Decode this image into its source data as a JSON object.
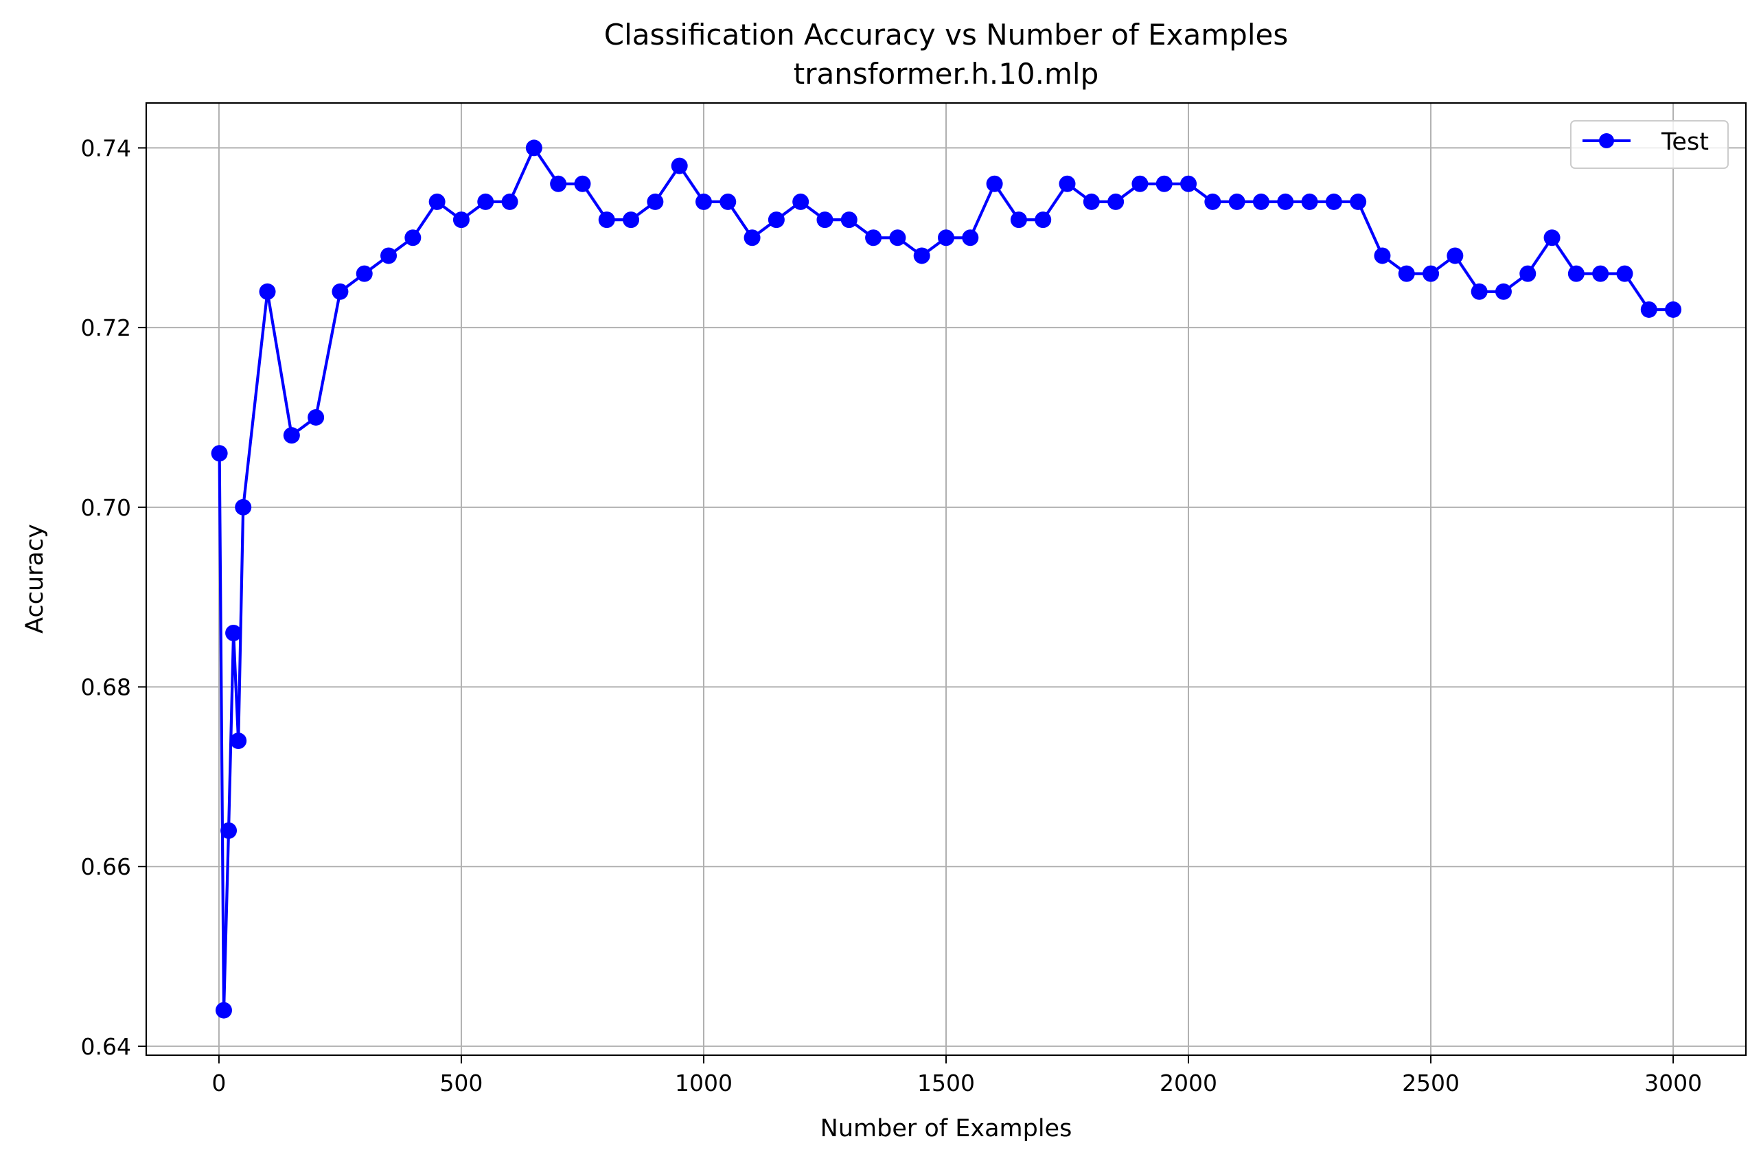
{
  "chart_data": {
    "type": "line",
    "title": "Classification Accuracy vs Number of Examples",
    "subtitle": "transformer.h.10.mlp",
    "xlabel": "Number of Examples",
    "ylabel": "Accuracy",
    "xlim": [
      -150,
      3150
    ],
    "ylim": [
      0.639,
      0.745
    ],
    "xticks": [
      0,
      500,
      1000,
      1500,
      2000,
      2500,
      3000
    ],
    "xtick_labels": [
      "0",
      "500",
      "1000",
      "1500",
      "2000",
      "2500",
      "3000"
    ],
    "yticks": [
      0.64,
      0.66,
      0.68,
      0.7,
      0.72,
      0.74
    ],
    "ytick_labels": [
      "0.64",
      "0.66",
      "0.68",
      "0.70",
      "0.72",
      "0.74"
    ],
    "grid": true,
    "legend_position": "top-right",
    "series": [
      {
        "name": "Test",
        "color": "#0000ff",
        "marker": "circle",
        "x": [
          1,
          10,
          20,
          30,
          40,
          50,
          100,
          150,
          200,
          250,
          300,
          350,
          400,
          450,
          500,
          550,
          600,
          650,
          700,
          750,
          800,
          850,
          900,
          950,
          1000,
          1050,
          1100,
          1150,
          1200,
          1250,
          1300,
          1350,
          1400,
          1450,
          1500,
          1550,
          1600,
          1650,
          1700,
          1750,
          1800,
          1850,
          1900,
          1950,
          2000,
          2050,
          2100,
          2150,
          2200,
          2250,
          2300,
          2350,
          2400,
          2450,
          2500,
          2550,
          2600,
          2650,
          2700,
          2750,
          2800,
          2850,
          2900,
          2950,
          3000
        ],
        "y": [
          0.706,
          0.644,
          0.664,
          0.686,
          0.674,
          0.7,
          0.724,
          0.708,
          0.71,
          0.724,
          0.726,
          0.728,
          0.73,
          0.734,
          0.732,
          0.734,
          0.734,
          0.74,
          0.736,
          0.736,
          0.732,
          0.732,
          0.734,
          0.738,
          0.734,
          0.734,
          0.73,
          0.732,
          0.734,
          0.732,
          0.732,
          0.73,
          0.73,
          0.728,
          0.73,
          0.73,
          0.736,
          0.732,
          0.732,
          0.736,
          0.734,
          0.734,
          0.736,
          0.736,
          0.736,
          0.734,
          0.734,
          0.734,
          0.734,
          0.734,
          0.734,
          0.734,
          0.728,
          0.726,
          0.726,
          0.728,
          0.724,
          0.724,
          0.726,
          0.73,
          0.726,
          0.726,
          0.726,
          0.722,
          0.722
        ]
      }
    ]
  }
}
